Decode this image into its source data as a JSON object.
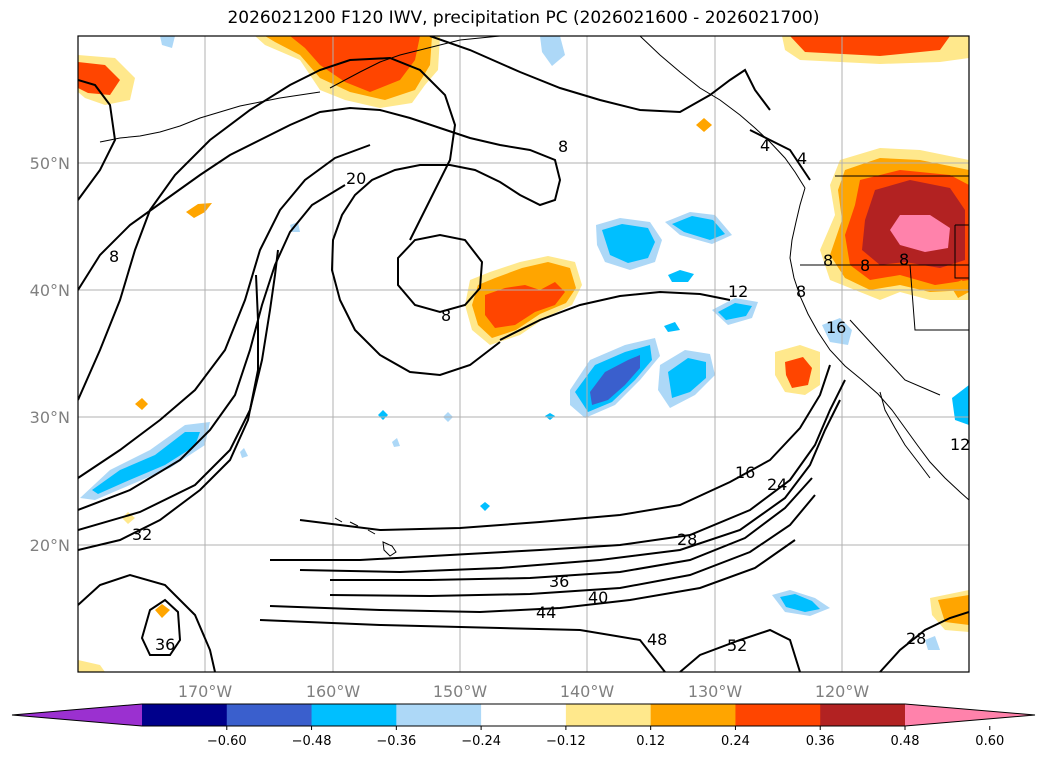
{
  "title": "2026021200 F120 IWV, precipitation PC (2026021600 - 2026021700)",
  "map": {
    "lon_range": [
      -180,
      -110
    ],
    "lat_range": [
      10,
      60
    ],
    "lat_labels": [
      "50°N",
      "40°N",
      "30°N",
      "20°N"
    ],
    "lat_values": [
      50,
      40,
      30,
      20
    ],
    "lon_labels": [
      "170°W",
      "160°W",
      "150°W",
      "140°W",
      "130°W",
      "120°W"
    ],
    "lon_values": [
      -170,
      -160,
      -150,
      -140,
      -130,
      -120
    ],
    "gridlines": true,
    "contour_labels": [
      "8",
      "20",
      "8",
      "8",
      "12",
      "4",
      "4",
      "8",
      "8",
      "8",
      "8",
      "16",
      "16",
      "24",
      "28",
      "32",
      "36",
      "36",
      "40",
      "44",
      "48",
      "52",
      "28",
      "12"
    ]
  },
  "colorbar": {
    "orientation": "horizontal",
    "extend": "both",
    "ticks": [
      "−0.60",
      "−0.48",
      "−0.36",
      "−0.24",
      "−0.12",
      "0.12",
      "0.24",
      "0.36",
      "0.48",
      "0.60"
    ],
    "colors": [
      "#9b30d0",
      "#00008b",
      "#3a5fcd",
      "#00bfff",
      "#add8f7",
      "#ffffff",
      "#ffe88c",
      "#ffa500",
      "#ff4500",
      "#b22222",
      "#ff82ab"
    ]
  },
  "colors": {
    "contour": "#000000",
    "coast": "#000000",
    "grid": "#b0b0b0",
    "label": "#808080"
  }
}
